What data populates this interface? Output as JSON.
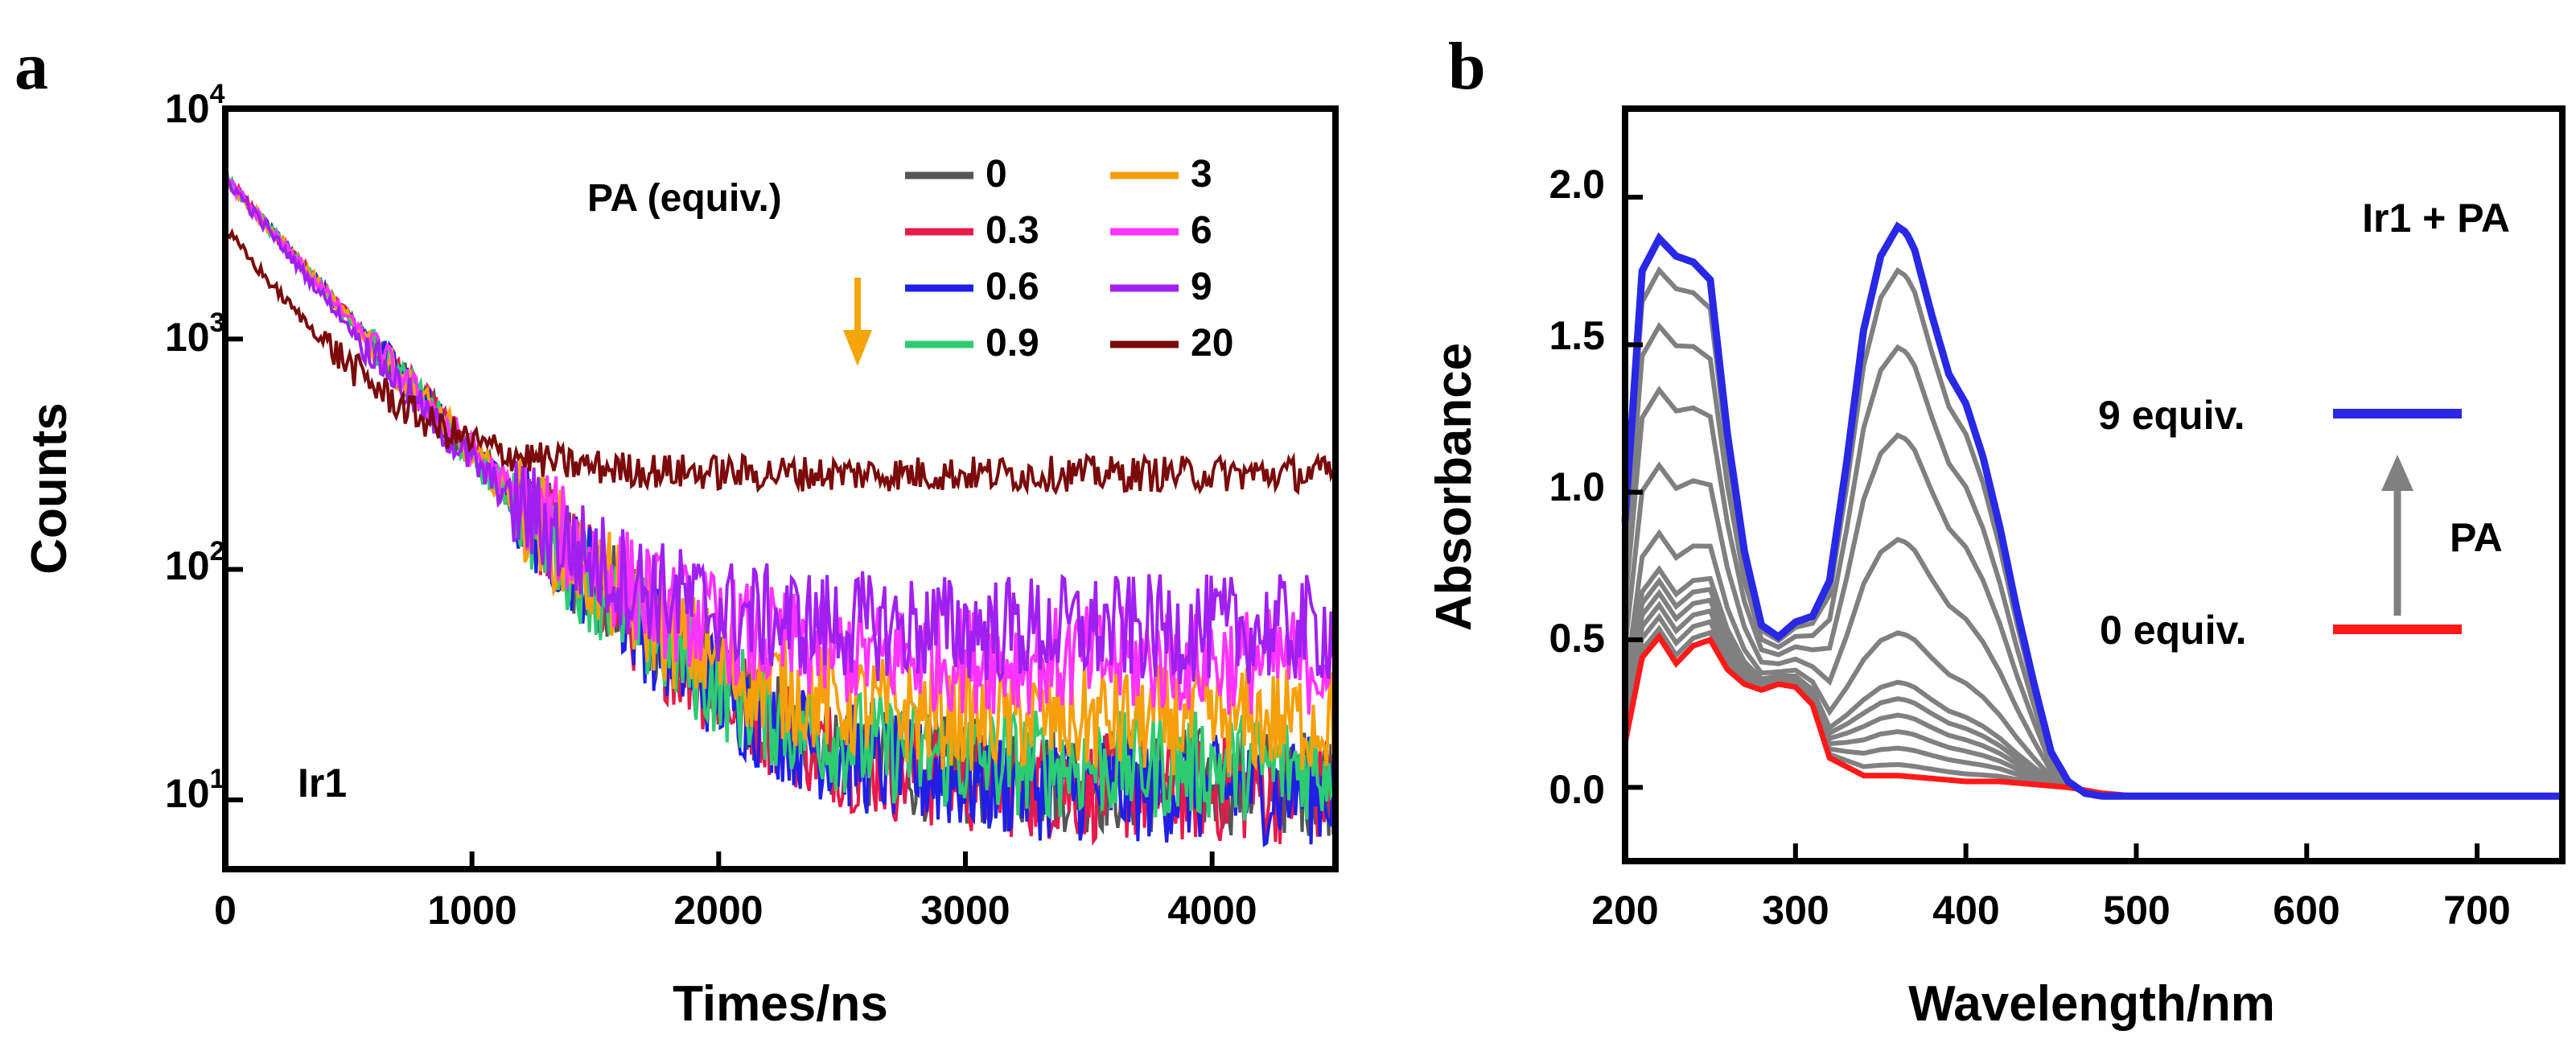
{
  "chart_data": [
    {
      "panel": "a",
      "type": "line",
      "yscale": "log",
      "xlabel": "Times/ns",
      "ylabel": "Counts",
      "xlim": [
        0,
        4500
      ],
      "ylim": [
        5,
        10000
      ],
      "x_ticks": [
        0,
        1000,
        2000,
        3000,
        4000
      ],
      "y_ticks": [
        {
          "value": 10,
          "base": "10",
          "exp": "1"
        },
        {
          "value": 100,
          "base": "10",
          "exp": "2"
        },
        {
          "value": 1000,
          "base": "10",
          "exp": "3"
        },
        {
          "value": 10000,
          "base": "10",
          "exp": "4"
        }
      ],
      "legend_title": "PA (equiv.)",
      "legend_position": "top-right",
      "sample_label": "Ir1",
      "arrow_color": "#F5A50A",
      "series": [
        {
          "name": "0",
          "color": "#555555",
          "start": 5000,
          "tau": 360,
          "plateau": 12
        },
        {
          "name": "0.3",
          "color": "#E8194B",
          "start": 5000,
          "tau": 360,
          "plateau": 11
        },
        {
          "name": "0.6",
          "color": "#1F1FE6",
          "start": 5000,
          "tau": 360,
          "plateau": 11
        },
        {
          "name": "0.9",
          "color": "#2ECC71",
          "start": 5000,
          "tau": 355,
          "plateau": 14
        },
        {
          "name": "3",
          "color": "#F5A00A",
          "start": 5000,
          "tau": 355,
          "plateau": 22
        },
        {
          "name": "6",
          "color": "#FF33FF",
          "start": 5000,
          "tau": 350,
          "plateau": 40
        },
        {
          "name": "9",
          "color": "#A020F0",
          "start": 5000,
          "tau": 330,
          "plateau": 55
        },
        {
          "name": "20",
          "color": "#7B0A0A",
          "start": 3000,
          "tau": 300,
          "plateau": 260
        }
      ]
    },
    {
      "panel": "b",
      "type": "line",
      "xlabel": "Wavelength/nm",
      "ylabel": "Absorbance",
      "xlim": [
        200,
        750
      ],
      "ylim": [
        -0.25,
        2.3
      ],
      "x_ticks": [
        200,
        300,
        400,
        500,
        600,
        700
      ],
      "y_ticks": [
        "0.0",
        "0.5",
        "1.0",
        "1.5",
        "2.0"
      ],
      "title_label": "Ir1 + PA",
      "arrow_label": "PA",
      "series": [
        {
          "name": "0 equiv.",
          "color": "#FF1A1A",
          "x": [
            200,
            210,
            220,
            230,
            240,
            250,
            260,
            270,
            280,
            290,
            300,
            310,
            320,
            340,
            360,
            380,
            400,
            420,
            440,
            460,
            480,
            500,
            550,
            600,
            650,
            700,
            750
          ],
          "y": [
            0.15,
            0.44,
            0.51,
            0.42,
            0.48,
            0.5,
            0.4,
            0.35,
            0.33,
            0.35,
            0.34,
            0.28,
            0.1,
            0.04,
            0.04,
            0.03,
            0.02,
            0.02,
            0.01,
            0.0,
            -0.02,
            -0.03,
            -0.03,
            -0.03,
            -0.03,
            -0.03,
            -0.03
          ]
        },
        {
          "name": "9 equiv.",
          "color": "#2828E6",
          "x": [
            200,
            210,
            220,
            230,
            240,
            250,
            260,
            270,
            280,
            290,
            300,
            310,
            320,
            330,
            340,
            350,
            360,
            365,
            370,
            380,
            390,
            400,
            410,
            420,
            430,
            440,
            450,
            460,
            470,
            480,
            490,
            500,
            550,
            600,
            650,
            700,
            750
          ],
          "y": [
            0.9,
            1.75,
            1.86,
            1.8,
            1.78,
            1.72,
            1.2,
            0.8,
            0.55,
            0.51,
            0.56,
            0.58,
            0.7,
            1.1,
            1.55,
            1.8,
            1.9,
            1.88,
            1.82,
            1.6,
            1.4,
            1.3,
            1.12,
            0.88,
            0.6,
            0.35,
            0.12,
            0.02,
            -0.02,
            -0.03,
            -0.03,
            -0.03,
            -0.03,
            -0.03,
            -0.03,
            -0.03,
            -0.03
          ]
        },
        {
          "name": "intermediate",
          "color": "#808080",
          "fractions": [
            0.02,
            0.05,
            0.08,
            0.11,
            0.14,
            0.17,
            0.26,
            0.43,
            0.62,
            0.78,
            0.92
          ]
        }
      ]
    }
  ],
  "panel_a": {
    "letter": "a",
    "xlabel": "Times/ns",
    "ylabel": "Counts",
    "legend_title": "PA (equiv.)",
    "sample_label": "Ir1",
    "x_ticks": [
      "0",
      "1000",
      "2000",
      "3000",
      "4000"
    ],
    "legend": [
      {
        "label": "0"
      },
      {
        "label": "0.3"
      },
      {
        "label": "0.6"
      },
      {
        "label": "0.9"
      },
      {
        "label": "3"
      },
      {
        "label": "6"
      },
      {
        "label": "9"
      },
      {
        "label": "20"
      }
    ]
  },
  "panel_b": {
    "letter": "b",
    "xlabel": "Wavelength/nm",
    "ylabel": "Absorbance",
    "title_label": "Ir1 + PA",
    "label_9": "9 equiv.",
    "label_0": "0 equiv.",
    "arrow_label": "PA",
    "x_ticks": [
      "200",
      "300",
      "400",
      "500",
      "600",
      "700"
    ],
    "y_ticks": [
      "0.0",
      "0.5",
      "1.0",
      "1.5",
      "2.0"
    ]
  }
}
